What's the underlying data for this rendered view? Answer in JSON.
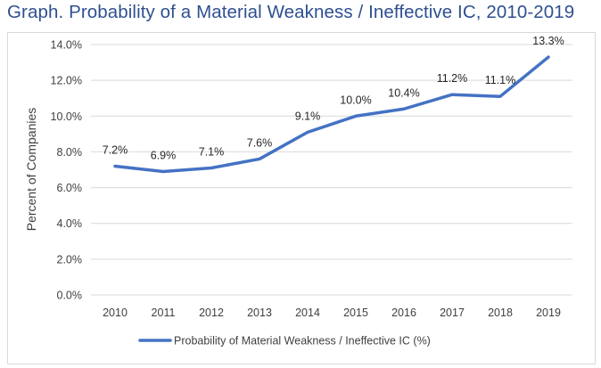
{
  "title": "Graph. Probability of a Material Weakness / Ineffective IC, 2010-2019",
  "colors": {
    "title": "#2e5090",
    "series": "#4472c4",
    "grid": "#d9d9d9",
    "text": "#404040"
  },
  "chart_data": {
    "type": "line",
    "title": "Graph. Probability of a Material Weakness / Ineffective IC, 2010-2019",
    "xlabel": "",
    "ylabel": "Percent of Companies",
    "categories": [
      "2010",
      "2011",
      "2012",
      "2013",
      "2014",
      "2015",
      "2016",
      "2017",
      "2018",
      "2019"
    ],
    "ylim": [
      0,
      14
    ],
    "yticks": [
      "0.0%",
      "2.0%",
      "4.0%",
      "6.0%",
      "8.0%",
      "10.0%",
      "12.0%",
      "14.0%"
    ],
    "ytick_values": [
      0,
      2,
      4,
      6,
      8,
      10,
      12,
      14
    ],
    "grid": true,
    "legend_position": "bottom",
    "series": [
      {
        "name": "Probability of Material Weakness / Ineffective IC (%)",
        "values": [
          7.2,
          6.9,
          7.1,
          7.6,
          9.1,
          10.0,
          10.4,
          11.2,
          11.1,
          13.3
        ],
        "labels": [
          "7.2%",
          "6.9%",
          "7.1%",
          "7.6%",
          "9.1%",
          "10.0%",
          "10.4%",
          "11.2%",
          "11.1%",
          "13.3%"
        ]
      }
    ]
  }
}
